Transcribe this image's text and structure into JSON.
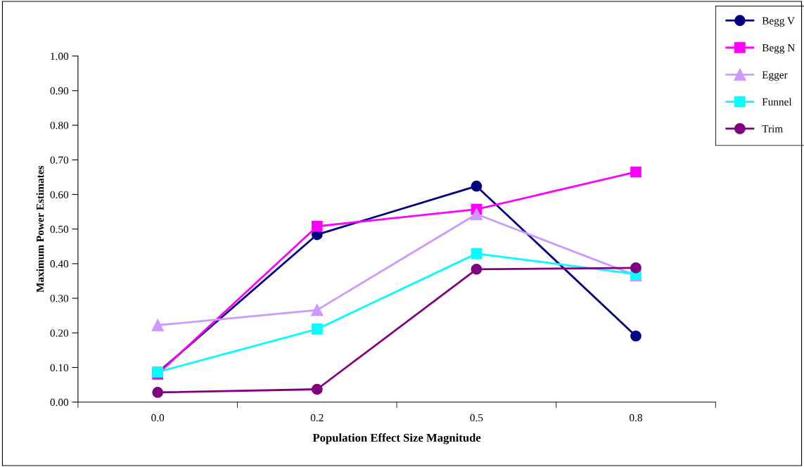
{
  "chart_data": {
    "type": "line",
    "xlabel": "Population Effect Size Magnitude",
    "ylabel": "Maximum Power Estimates",
    "categories": [
      "0.0",
      "0.2",
      "0.5",
      "0.8"
    ],
    "series": [
      {
        "name": "Begg V",
        "color": "#000080",
        "marker": "circle",
        "values": [
          0.085,
          0.484,
          0.624,
          0.191
        ]
      },
      {
        "name": "Begg N",
        "color": "#ff00ff",
        "marker": "square",
        "values": [
          0.081,
          0.508,
          0.557,
          0.665
        ]
      },
      {
        "name": "Egger",
        "color": "#cc99ff",
        "marker": "triangle",
        "values": [
          0.222,
          0.266,
          0.543,
          0.366
        ]
      },
      {
        "name": "Funnel",
        "color": "#00ffff",
        "marker": "square",
        "values": [
          0.087,
          0.211,
          0.429,
          0.37
        ]
      },
      {
        "name": "Trim",
        "color": "#800080",
        "marker": "circle",
        "values": [
          0.028,
          0.037,
          0.384,
          0.388
        ]
      }
    ],
    "ylim": [
      0,
      1
    ],
    "yticks": [
      {
        "value": 0,
        "label": "0.00"
      },
      {
        "value": 0.1,
        "label": "0.10"
      },
      {
        "value": 0.2,
        "label": "0.20"
      },
      {
        "value": 0.3,
        "label": "0.30"
      },
      {
        "value": 0.4,
        "label": "0.40"
      },
      {
        "value": 0.5,
        "label": "0.50"
      },
      {
        "value": 0.6,
        "label": "0.60"
      },
      {
        "value": 0.7,
        "label": "0.70"
      },
      {
        "value": 0.8,
        "label": "0.80"
      },
      {
        "value": 0.9,
        "label": "0.90"
      },
      {
        "value": 1,
        "label": "1.00"
      }
    ],
    "grid": false,
    "legend": "top right",
    "line_style": "solid"
  }
}
